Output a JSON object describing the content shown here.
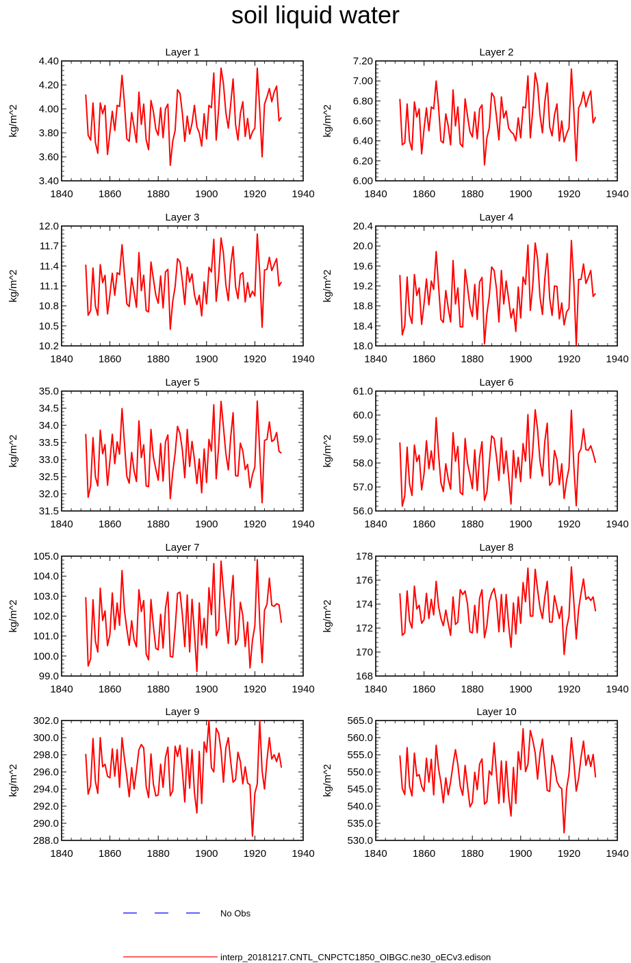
{
  "title": "soil liquid water",
  "legend": {
    "obs_label": "No Obs",
    "model_label": "interp_20181217.CNTL_CNPCTC1850_OIBGC.ne30_oECv3.edison",
    "obs_color": "#0000ff",
    "model_color": "#ff0000"
  },
  "chart_data": [
    {
      "type": "line",
      "title": "Layer 1",
      "ylabel": "kg/m^2",
      "xlim": [
        1840,
        1940
      ],
      "ylim": [
        3.4,
        4.4
      ],
      "xticks": [
        1840,
        1860,
        1880,
        1900,
        1920,
        1940
      ],
      "ytick_labels": [
        "3.40",
        "3.60",
        "3.80",
        "4.00",
        "4.20",
        "4.40"
      ],
      "x_start": 1850,
      "values": [
        4.12,
        3.78,
        3.74,
        4.05,
        3.72,
        3.63,
        4.05,
        3.96,
        4.03,
        3.62,
        3.8,
        3.98,
        3.82,
        4.03,
        4.02,
        4.28,
        4.05,
        3.75,
        3.73,
        3.97,
        3.85,
        3.72,
        4.14,
        3.87,
        4.04,
        3.74,
        3.66,
        4.07,
        3.98,
        3.83,
        3.78,
        4.01,
        3.76,
        4.0,
        4.04,
        3.53,
        3.73,
        3.82,
        4.16,
        4.13,
        3.96,
        3.73,
        3.94,
        3.79,
        3.88,
        4.03,
        3.85,
        3.8,
        3.69,
        3.96,
        3.75,
        4.03,
        4.01,
        4.3,
        3.74,
        4.0,
        4.34,
        4.21,
        3.97,
        3.84,
        4.04,
        4.25,
        3.87,
        3.74,
        3.96,
        4.06,
        3.77,
        3.92,
        3.75,
        3.81,
        3.84,
        4.34,
        4.0,
        3.6,
        4.04,
        4.1,
        4.17,
        4.06,
        4.14,
        4.19,
        3.9,
        3.93
      ],
      "series_color": "#ff0000"
    },
    {
      "type": "line",
      "title": "Layer 2",
      "ylabel": "kg/m^2",
      "xlim": [
        1840,
        1940
      ],
      "ylim": [
        6.0,
        7.2
      ],
      "xticks": [
        1840,
        1860,
        1880,
        1900,
        1920,
        1940
      ],
      "ytick_labels": [
        "6.00",
        "6.20",
        "6.40",
        "6.60",
        "6.80",
        "7.00",
        "7.20"
      ],
      "x_start": 1850,
      "values": [
        6.82,
        6.36,
        6.38,
        6.77,
        6.4,
        6.31,
        6.79,
        6.64,
        6.72,
        6.27,
        6.52,
        6.73,
        6.5,
        6.74,
        6.72,
        7.0,
        6.74,
        6.4,
        6.38,
        6.67,
        6.55,
        6.36,
        6.91,
        6.55,
        6.74,
        6.37,
        6.34,
        6.82,
        6.65,
        6.49,
        6.44,
        6.69,
        6.42,
        6.72,
        6.76,
        6.16,
        6.43,
        6.53,
        6.88,
        6.84,
        6.64,
        6.41,
        6.84,
        6.63,
        6.7,
        6.53,
        6.49,
        6.47,
        6.4,
        6.63,
        6.43,
        6.74,
        6.73,
        7.05,
        6.43,
        6.71,
        7.08,
        6.96,
        6.66,
        6.48,
        6.79,
        6.98,
        6.54,
        6.45,
        6.66,
        6.77,
        6.4,
        6.6,
        6.39,
        6.47,
        6.53,
        7.12,
        6.7,
        6.2,
        6.73,
        6.78,
        6.89,
        6.74,
        6.83,
        6.9,
        6.58,
        6.64
      ],
      "series_color": "#ff0000"
    },
    {
      "type": "line",
      "title": "Layer 3",
      "ylabel": "kg/m^2",
      "xlim": [
        1840,
        1940
      ],
      "ylim": [
        10.2,
        12.0
      ],
      "xticks": [
        1840,
        1860,
        1880,
        1900,
        1920,
        1940
      ],
      "ytick_labels": [
        "10.2",
        "10.5",
        "10.8",
        "11.1",
        "11.4",
        "11.7",
        "12.0"
      ],
      "x_start": 1850,
      "values": [
        11.42,
        10.66,
        10.73,
        11.37,
        10.8,
        10.66,
        11.42,
        11.15,
        11.26,
        10.68,
        10.97,
        11.29,
        10.96,
        11.3,
        11.27,
        11.72,
        11.29,
        10.83,
        10.79,
        11.22,
        11.01,
        10.78,
        11.6,
        11.03,
        11.26,
        10.73,
        10.71,
        11.46,
        11.21,
        10.96,
        10.84,
        11.25,
        10.77,
        11.31,
        11.35,
        10.45,
        10.87,
        11.09,
        11.51,
        11.46,
        11.17,
        10.82,
        11.38,
        11.16,
        11.28,
        10.97,
        10.82,
        10.96,
        10.65,
        11.16,
        10.83,
        11.38,
        11.31,
        11.8,
        10.87,
        11.24,
        11.82,
        11.59,
        11.12,
        10.88,
        11.41,
        11.69,
        11.09,
        10.91,
        11.27,
        11.3,
        10.86,
        11.15,
        10.93,
        11.02,
        10.95,
        11.88,
        11.3,
        10.48,
        11.34,
        11.35,
        11.53,
        11.33,
        11.42,
        11.51,
        11.1,
        11.16
      ],
      "series_color": "#ff0000"
    },
    {
      "type": "line",
      "title": "Layer 4",
      "ylabel": "kg/m^2",
      "xlim": [
        1840,
        1940
      ],
      "ylim": [
        18.0,
        20.4
      ],
      "xticks": [
        1840,
        1860,
        1880,
        1900,
        1920,
        1940
      ],
      "ytick_labels": [
        "18.0",
        "18.4",
        "18.8",
        "19.2",
        "19.6",
        "20.0",
        "20.4"
      ],
      "x_start": 1850,
      "values": [
        19.42,
        18.22,
        18.4,
        19.38,
        18.63,
        18.45,
        19.43,
        19.01,
        19.16,
        18.43,
        18.84,
        19.34,
        18.82,
        19.3,
        19.13,
        19.89,
        19.2,
        18.53,
        18.47,
        19.11,
        18.76,
        18.48,
        19.71,
        18.84,
        19.16,
        18.38,
        18.38,
        19.53,
        19.18,
        18.78,
        18.59,
        19.23,
        18.53,
        19.28,
        19.37,
        18.04,
        18.64,
        18.99,
        19.58,
        19.51,
        19.14,
        18.48,
        19.51,
        18.84,
        19.3,
        18.95,
        18.56,
        18.74,
        18.29,
        19.18,
        18.56,
        19.38,
        19.23,
        20.02,
        18.71,
        19.21,
        20.06,
        19.74,
        18.98,
        18.63,
        19.35,
        19.85,
        18.95,
        18.61,
        19.2,
        19.19,
        18.54,
        18.86,
        18.42,
        18.68,
        18.75,
        20.11,
        19.26,
        18.01,
        19.33,
        19.33,
        19.64,
        19.25,
        19.37,
        19.51,
        18.99,
        19.05
      ],
      "series_color": "#ff0000"
    },
    {
      "type": "line",
      "title": "Layer 5",
      "ylabel": "kg/m^2",
      "xlim": [
        1840,
        1940
      ],
      "ylim": [
        31.5,
        35.0
      ],
      "xticks": [
        1840,
        1860,
        1880,
        1900,
        1920,
        1940
      ],
      "ytick_labels": [
        "31.5",
        "32.0",
        "32.5",
        "33.0",
        "33.5",
        "34.0",
        "34.5",
        "35.0"
      ],
      "x_start": 1850,
      "values": [
        33.75,
        31.9,
        32.23,
        33.64,
        32.5,
        32.23,
        33.86,
        33.17,
        33.44,
        32.25,
        32.96,
        33.74,
        32.88,
        33.52,
        33.16,
        34.49,
        33.49,
        32.51,
        32.31,
        33.21,
        32.67,
        32.36,
        34.13,
        33.06,
        33.43,
        32.23,
        32.21,
        33.88,
        33.08,
        32.72,
        32.4,
        33.47,
        32.37,
        33.52,
        33.72,
        31.86,
        32.63,
        33.18,
        33.97,
        33.76,
        33.27,
        32.47,
        33.88,
        32.8,
        33.53,
        33.0,
        32.3,
        33.02,
        32.03,
        33.31,
        32.33,
        33.59,
        33.25,
        34.6,
        32.44,
        33.39,
        34.7,
        33.95,
        33.18,
        32.7,
        33.66,
        34.37,
        32.53,
        32.52,
        33.48,
        33.25,
        32.71,
        32.86,
        32.18,
        32.56,
        32.79,
        34.71,
        33.22,
        31.74,
        33.56,
        33.59,
        34.1,
        33.53,
        33.58,
        33.79,
        33.24,
        33.19
      ],
      "series_color": "#ff0000"
    },
    {
      "type": "line",
      "title": "Layer 6",
      "ylabel": "kg/m^2",
      "xlim": [
        1840,
        1940
      ],
      "ylim": [
        56.0,
        61.0
      ],
      "xticks": [
        1840,
        1860,
        1880,
        1900,
        1920,
        1940
      ],
      "ytick_labels": [
        "56.0",
        "57.0",
        "58.0",
        "59.0",
        "60.0",
        "61.0"
      ],
      "x_start": 1850,
      "values": [
        58.86,
        56.2,
        56.62,
        58.66,
        57.13,
        56.65,
        58.75,
        58.06,
        58.33,
        56.88,
        57.55,
        58.93,
        57.76,
        58.51,
        57.71,
        59.89,
        58.37,
        57.17,
        56.81,
        57.97,
        57.34,
        56.91,
        59.26,
        58.07,
        58.69,
        56.77,
        56.68,
        59.02,
        58.0,
        57.51,
        56.93,
        58.55,
        56.85,
        58.25,
        58.89,
        56.44,
        56.78,
        57.98,
        59.13,
        59.02,
        58.24,
        57.27,
        59.05,
        57.56,
        58.5,
        57.45,
        56.29,
        58.52,
        57.38,
        58.24,
        57.22,
        58.81,
        58.08,
        60.02,
        57.37,
        58.53,
        60.22,
        59.4,
        58.1,
        57.45,
        58.91,
        59.66,
        57.07,
        57.21,
        58.52,
        58.13,
        57.09,
        57.97,
        56.52,
        57.28,
        57.78,
        60.2,
        57.88,
        56.22,
        58.4,
        58.6,
        59.43,
        58.56,
        58.53,
        58.72,
        58.4,
        58.01
      ],
      "series_color": "#ff0000"
    },
    {
      "type": "line",
      "title": "Layer 7",
      "ylabel": "kg/m^2",
      "xlim": [
        1840,
        1940
      ],
      "ylim": [
        99.0,
        105.0
      ],
      "xticks": [
        1840,
        1860,
        1880,
        1900,
        1920,
        1940
      ],
      "ytick_labels": [
        "99.0",
        "100.0",
        "101.0",
        "102.0",
        "103.0",
        "104.0",
        "105.0"
      ],
      "x_start": 1850,
      "values": [
        102.95,
        99.5,
        99.86,
        102.82,
        100.74,
        100.2,
        103.4,
        101.78,
        102.26,
        100.52,
        101.08,
        103.16,
        101.33,
        102.66,
        101.54,
        104.28,
        102.29,
        101.35,
        100.54,
        101.77,
        100.81,
        100.46,
        103.32,
        102.23,
        102.78,
        100.1,
        99.81,
        102.83,
        101.51,
        100.39,
        100.31,
        102.09,
        100.4,
        102.38,
        103.2,
        99.98,
        99.95,
        101.37,
        103.13,
        103.2,
        102.06,
        100.47,
        103.06,
        100.21,
        102.84,
        101.15,
        99.22,
        102.66,
        100.55,
        101.89,
        100.41,
        103.42,
        102.07,
        104.63,
        101.02,
        101.33,
        104.75,
        103.29,
        101.94,
        100.63,
        102.72,
        104.03,
        100.56,
        100.85,
        102.69,
        102.02,
        100.47,
        101.7,
        99.41,
        100.79,
        101.52,
        104.82,
        101.7,
        99.67,
        102.29,
        102.59,
        103.9,
        102.54,
        102.49,
        102.62,
        102.57,
        101.66
      ],
      "series_color": "#ff0000"
    },
    {
      "type": "line",
      "title": "Layer 8",
      "ylabel": "kg/m^2",
      "xlim": [
        1840,
        1940
      ],
      "ylim": [
        168,
        178
      ],
      "xticks": [
        1840,
        1860,
        1880,
        1900,
        1920,
        1940
      ],
      "ytick_labels": [
        "168",
        "170",
        "172",
        "174",
        "176",
        "178"
      ],
      "x_start": 1850,
      "values": [
        174.9,
        171.4,
        171.6,
        175.1,
        172.6,
        172.0,
        175.5,
        173.6,
        173.9,
        172.4,
        172.7,
        174.9,
        172.8,
        174.4,
        173.1,
        175.9,
        173.8,
        172.8,
        172.2,
        173.5,
        172.4,
        171.4,
        174.6,
        172.3,
        172.5,
        175.2,
        174.8,
        175.1,
        174.0,
        171.7,
        171.6,
        173.9,
        171.6,
        174.5,
        175.2,
        171.2,
        172.2,
        174.2,
        174.9,
        175.3,
        174.2,
        171.7,
        174.8,
        171.7,
        174.8,
        172.3,
        170.4,
        174.1,
        171.5,
        174.6,
        172.4,
        175.8,
        174.2,
        177.0,
        173.0,
        173.0,
        176.9,
        175.2,
        173.7,
        172.8,
        174.6,
        175.9,
        172.5,
        172.5,
        174.7,
        173.7,
        172.8,
        173.8,
        169.8,
        172.0,
        173.0,
        177.1,
        174.2,
        171.1,
        173.6,
        174.9,
        176.1,
        174.4,
        174.6,
        174.3,
        174.6,
        173.4
      ],
      "series_color": "#ff0000"
    },
    {
      "type": "line",
      "title": "Layer 9",
      "ylabel": "kg/m^2",
      "xlim": [
        1840,
        1940
      ],
      "ylim": [
        288.0,
        302.0
      ],
      "xticks": [
        1840,
        1860,
        1880,
        1900,
        1920,
        1940
      ],
      "ytick_labels": [
        "288.0",
        "290.0",
        "292.0",
        "294.0",
        "296.0",
        "298.0",
        "300.0",
        "302.0"
      ],
      "x_start": 1850,
      "values": [
        298.1,
        293.4,
        294.4,
        299.9,
        294.9,
        293.5,
        300.0,
        296.6,
        296.9,
        295.5,
        295.3,
        298.7,
        295.5,
        298.6,
        294.2,
        300.0,
        297.6,
        295.5,
        293.1,
        296.5,
        294.0,
        296.2,
        298.6,
        299.2,
        298.8,
        294.3,
        293.0,
        298.1,
        294.6,
        293.2,
        293.3,
        296.9,
        294.2,
        297.7,
        298.9,
        293.2,
        293.8,
        299.0,
        297.8,
        299.1,
        296.1,
        292.5,
        298.8,
        294.1,
        298.6,
        293.6,
        291.2,
        298.4,
        292.3,
        299.5,
        298.3,
        302.0,
        296.5,
        296.0,
        301.1,
        300.5,
        298.5,
        294.8,
        298.8,
        300.0,
        297.2,
        294.8,
        295.1,
        298.3,
        297.2,
        294.6,
        296.6,
        294.7,
        294.5,
        288.5,
        293.5,
        294.6,
        302.0,
        296.1,
        294.0,
        297.4,
        300.0,
        297.5,
        298.0,
        297.2,
        298.2,
        296.5
      ],
      "series_color": "#ff0000"
    },
    {
      "type": "line",
      "title": "Layer 10",
      "ylabel": "kg/m^2",
      "xlim": [
        1840,
        1940
      ],
      "ylim": [
        530.0,
        565.0
      ],
      "xticks": [
        1840,
        1860,
        1880,
        1900,
        1920,
        1940
      ],
      "ytick_labels": [
        "530.0",
        "535.0",
        "540.0",
        "545.0",
        "550.0",
        "555.0",
        "560.0",
        "565.0"
      ],
      "x_start": 1850,
      "values": [
        554.8,
        545.2,
        543.4,
        557.1,
        545.8,
        543.0,
        555.5,
        548.8,
        549.2,
        545.8,
        544.3,
        554.0,
        547.0,
        553.7,
        543.3,
        557.8,
        551.0,
        546.9,
        541.0,
        548.3,
        543.3,
        547.1,
        552.2,
        556.5,
        552.1,
        545.8,
        543.2,
        551.9,
        546.0,
        539.8,
        541.1,
        549.9,
        544.8,
        552.3,
        553.8,
        540.6,
        541.3,
        550.3,
        549.1,
        558.5,
        549.3,
        540.8,
        553.2,
        541.1,
        553.1,
        543.2,
        537.1,
        551.3,
        540.8,
        555.9,
        550.7,
        562.6,
        550.1,
        552.2,
        562.1,
        559.2,
        555.6,
        547.9,
        555.4,
        559.6,
        552.1,
        544.6,
        544.3,
        554.8,
        551.7,
        547.2,
        545.7,
        545.1,
        532.2,
        545.1,
        549.4,
        560.0,
        552.9,
        544.4,
        548.2,
        554.3,
        559.0,
        551.9,
        554.9,
        551.6,
        555.1,
        548.4
      ],
      "series_color": "#ff0000"
    }
  ]
}
